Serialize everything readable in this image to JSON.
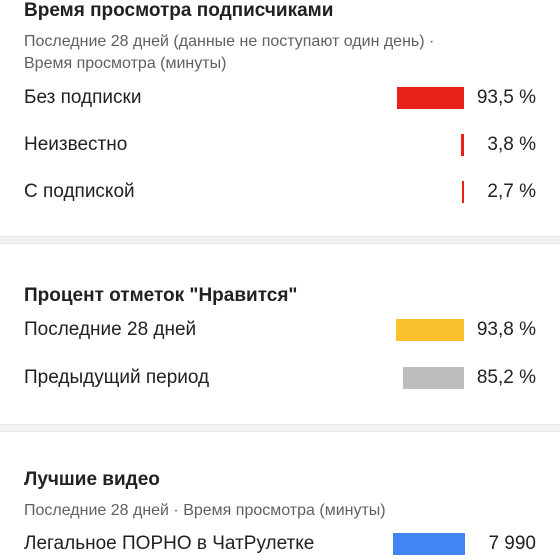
{
  "subscribers": {
    "title": "Время просмотра подписчиками",
    "subtitle_line1": "Последние 28 дней (данные не поступают один день) ·",
    "subtitle_line2": "Время просмотра (минуты)",
    "rows": [
      {
        "label": "Без подписки",
        "value": "93,5 %",
        "fraction": 0.935,
        "color": "#e62117"
      },
      {
        "label": "Неизвестно",
        "value": "3,8 %",
        "fraction": 0.038,
        "color": "#e62117"
      },
      {
        "label": "С подпиской",
        "value": "2,7 %",
        "fraction": 0.027,
        "color": "#e62117"
      }
    ]
  },
  "likes": {
    "title": "Процент отметок \"Нравится\"",
    "rows": [
      {
        "label": "Последние 28 дней",
        "value": "93,8 %",
        "fraction": 0.938,
        "color": "#fbc02d"
      },
      {
        "label": "Предыдущий период",
        "value": "85,2 %",
        "fraction": 0.852,
        "color": "#bdbdbd"
      }
    ]
  },
  "top_videos": {
    "title": "Лучшие видео",
    "subtitle": "Последние 28 дней · Время просмотра (минуты)",
    "rows": [
      {
        "label": "Легальное ПОРНО в ЧатРулетке",
        "value": "7 990",
        "fraction": 1.0,
        "color": "#4285f4"
      }
    ]
  }
}
